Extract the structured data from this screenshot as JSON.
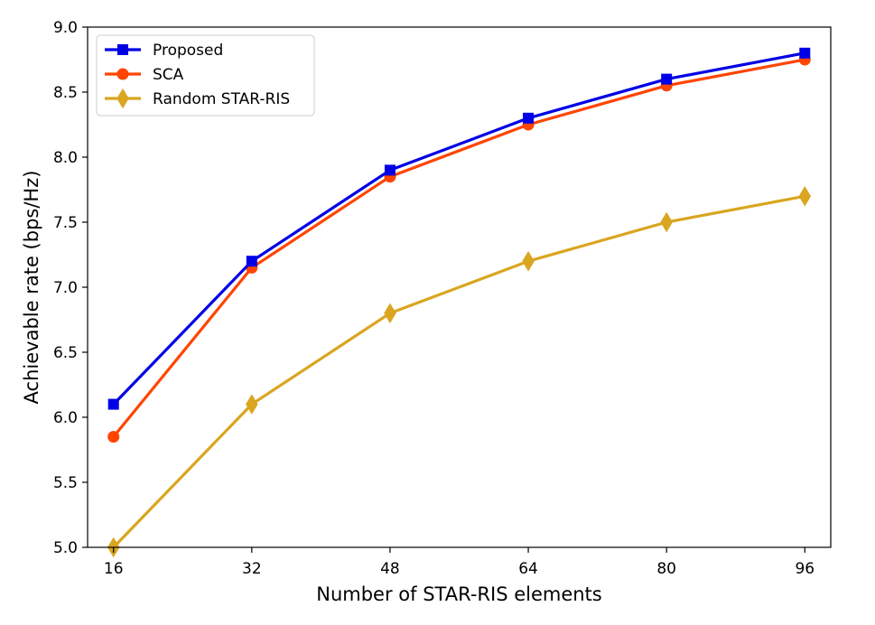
{
  "chart_data": {
    "type": "line",
    "title": "",
    "xlabel": "Number of STAR-RIS elements",
    "ylabel": "Achievable rate (bps/Hz)",
    "x": [
      16,
      32,
      48,
      64,
      80,
      96
    ],
    "xticks": [
      "16",
      "32",
      "48",
      "64",
      "80",
      "96"
    ],
    "xlim": [
      13,
      99
    ],
    "ylim": [
      5.0,
      9.0
    ],
    "yticks": [
      "5.0",
      "5.5",
      "6.0",
      "6.5",
      "7.0",
      "7.5",
      "8.0",
      "8.5",
      "9.0"
    ],
    "grid": false,
    "legend_position": "top-left",
    "series": [
      {
        "name": "Proposed",
        "values": [
          6.1,
          7.2,
          7.9,
          8.3,
          8.6,
          8.8
        ],
        "color": "#0000e6",
        "marker": "square"
      },
      {
        "name": "SCA",
        "values": [
          5.85,
          7.15,
          7.85,
          8.25,
          8.55,
          8.75
        ],
        "color": "#ff4500",
        "marker": "circle"
      },
      {
        "name": "Random STAR-RIS",
        "values": [
          5.0,
          6.1,
          6.8,
          7.2,
          7.5,
          7.7
        ],
        "color": "#daa520",
        "marker": "diamond"
      }
    ]
  }
}
